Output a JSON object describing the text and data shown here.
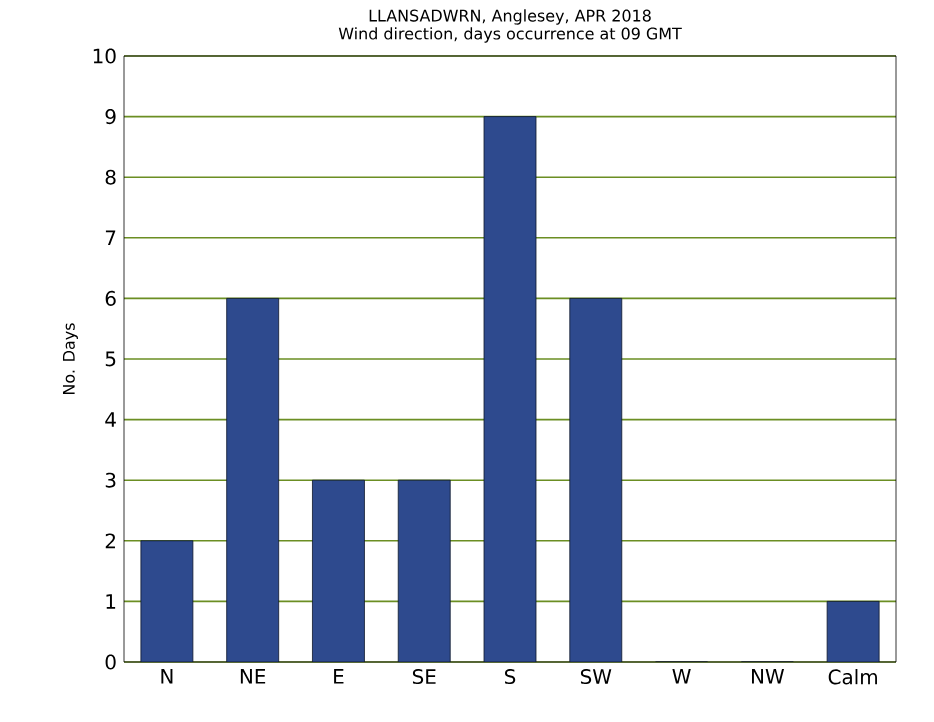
{
  "chart_data": {
    "type": "bar",
    "title": "LLANSADWRN, Anglesey, APR 2018",
    "subtitle": "Wind direction, days occurrence at 09 GMT",
    "ylabel": "No. Days",
    "categories": [
      "N",
      "NE",
      "E",
      "SE",
      "S",
      "SW",
      "W",
      "NW",
      "Calm"
    ],
    "values": [
      2,
      6,
      3,
      3,
      9,
      6,
      0,
      0,
      1
    ],
    "color": "#2e4a8e",
    "ylim": [
      0,
      10
    ],
    "yticks": [
      0,
      1,
      2,
      3,
      4,
      5,
      6,
      7,
      8,
      9,
      10
    ],
    "grid": "y"
  }
}
